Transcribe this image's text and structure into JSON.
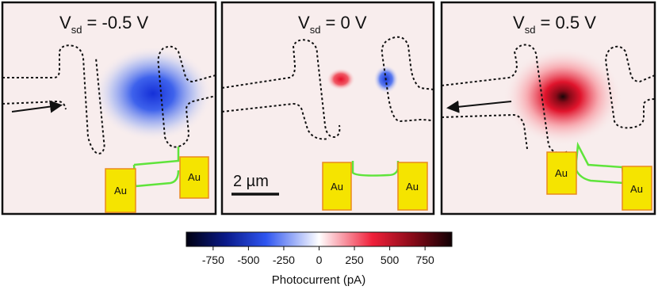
{
  "panels": [
    {
      "title": {
        "main": "V",
        "sub": "sd",
        "rest": " = -0.5 V"
      },
      "au_labels": [
        "Au",
        "Au"
      ]
    },
    {
      "title": {
        "main": "V",
        "sub": "sd",
        "rest": " = 0 V"
      },
      "au_labels": [
        "Au",
        "Au"
      ],
      "scale_bar": "2 µm"
    },
    {
      "title": {
        "main": "V",
        "sub": "sd",
        "rest": " = 0.5 V"
      },
      "au_labels": [
        "Au",
        "Au"
      ]
    }
  ],
  "colorbar": {
    "label": "Photocurrent (pA)",
    "lim": [
      -940,
      940
    ],
    "ticks": [
      -750,
      -500,
      -250,
      0,
      250,
      500,
      750
    ]
  }
}
